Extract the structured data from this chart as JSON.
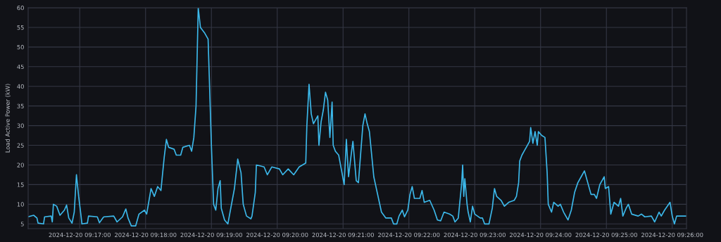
{
  "chart_data": {
    "type": "line",
    "ylabel": "Load Active Power (kW)",
    "grid": true,
    "marker": "none",
    "line_style": "solid",
    "xlim": [
      "2024-12-20T09:16:13",
      "2024-12-20T09:26:13"
    ],
    "ylim": [
      3.8,
      60
    ],
    "yticks": [
      5,
      10,
      15,
      20,
      25,
      30,
      35,
      40,
      45,
      50,
      55,
      60
    ],
    "xticks": [
      {
        "value": "2024-12-20T09:17",
        "label": "2024-12-20 09:17:00"
      },
      {
        "value": "2024-12-20T09:18",
        "label": "2024-12-20 09:18:00"
      },
      {
        "value": "2024-12-20T09:19",
        "label": "2024-12-20 09:19:00"
      },
      {
        "value": "2024-12-20T09:20",
        "label": "2024-12-20 09:20:00"
      },
      {
        "value": "2024-12-20T09:21",
        "label": "2024-12-20 09:21:00"
      },
      {
        "value": "2024-12-20T09:22",
        "label": "2024-12-20 09:22:00"
      },
      {
        "value": "2024-12-20T09:23",
        "label": "2024-12-20 09:23:00"
      },
      {
        "value": "2024-12-20T09:24",
        "label": "2024-12-20 09:24:00"
      },
      {
        "value": "2024-12-20T09:25",
        "label": "2024-12-20 09:25:00"
      },
      {
        "value": "2024-12-20T09:26",
        "label": "2024-12-20 09:26:00"
      }
    ],
    "series": [
      {
        "color": "#3cb8ea",
        "x": [
          "2024-12-20T09:16:13",
          "2024-12-20T09:16:18",
          "2024-12-20T09:16:21",
          "2024-12-20T09:16:22",
          "2024-12-20T09:16:27",
          "2024-12-20T09:16:28",
          "2024-12-20T09:16:34",
          "2024-12-20T09:16:35",
          "2024-12-20T09:16:36",
          "2024-12-20T09:16:39",
          "2024-12-20T09:16:42",
          "2024-12-20T09:16:46",
          "2024-12-20T09:16:48",
          "2024-12-20T09:16:50",
          "2024-12-20T09:16:53",
          "2024-12-20T09:16:55",
          "2024-12-20T09:16:57",
          "2024-12-20T09:16:59",
          "2024-12-20T09:17:01",
          "2024-12-20T09:17:02",
          "2024-12-20T09:17:07",
          "2024-12-20T09:17:08",
          "2024-12-20T09:17:16",
          "2024-12-20T09:17:18",
          "2024-12-20T09:17:21",
          "2024-12-20T09:17:22",
          "2024-12-20T09:17:31",
          "2024-12-20T09:17:34",
          "2024-12-20T09:17:39",
          "2024-12-20T09:17:42",
          "2024-12-20T09:17:44",
          "2024-12-20T09:17:47",
          "2024-12-20T09:17:51",
          "2024-12-20T09:17:54",
          "2024-12-20T09:17:59",
          "2024-12-20T09:18:01",
          "2024-12-20T09:18:05",
          "2024-12-20T09:18:08",
          "2024-12-20T09:18:11",
          "2024-12-20T09:18:14",
          "2024-12-20T09:18:17",
          "2024-12-20T09:18:19",
          "2024-12-20T09:18:21",
          "2024-12-20T09:18:26",
          "2024-12-20T09:18:28",
          "2024-12-20T09:18:32",
          "2024-12-20T09:18:34",
          "2024-12-20T09:18:40",
          "2024-12-20T09:18:42",
          "2024-12-20T09:18:44",
          "2024-12-20T09:18:46",
          "2024-12-20T09:18:48",
          "2024-12-20T09:18:50",
          "2024-12-20T09:18:54",
          "2024-12-20T09:18:57",
          "2024-12-20T09:18:58",
          "2024-12-20T09:19:00",
          "2024-12-20T09:19:02",
          "2024-12-20T09:19:04",
          "2024-12-20T09:19:06",
          "2024-12-20T09:19:08",
          "2024-12-20T09:19:09",
          "2024-12-20T09:19:12",
          "2024-12-20T09:19:15",
          "2024-12-20T09:19:21",
          "2024-12-20T09:19:24",
          "2024-12-20T09:19:27",
          "2024-12-20T09:19:29",
          "2024-12-20T09:19:32",
          "2024-12-20T09:19:36",
          "2024-12-20T09:19:37",
          "2024-12-20T09:19:40",
          "2024-12-20T09:19:41",
          "2024-12-20T09:19:48",
          "2024-12-20T09:19:51",
          "2024-12-20T09:19:55",
          "2024-12-20T09:20:02",
          "2024-12-20T09:20:05",
          "2024-12-20T09:20:10",
          "2024-12-20T09:20:15",
          "2024-12-20T09:20:20",
          "2024-12-20T09:20:26",
          "2024-12-20T09:20:27",
          "2024-12-20T09:20:29",
          "2024-12-20T09:20:31",
          "2024-12-20T09:20:33",
          "2024-12-20T09:20:37",
          "2024-12-20T09:20:38",
          "2024-12-20T09:20:40",
          "2024-12-20T09:20:42",
          "2024-12-20T09:20:44",
          "2024-12-20T09:20:46",
          "2024-12-20T09:20:48",
          "2024-12-20T09:20:50",
          "2024-12-20T09:20:51",
          "2024-12-20T09:20:53",
          "2024-12-20T09:20:56",
          "2024-12-20T09:20:59",
          "2024-12-20T09:21:01",
          "2024-12-20T09:21:03",
          "2024-12-20T09:21:05",
          "2024-12-20T09:21:08",
          "2024-12-20T09:21:09",
          "2024-12-20T09:21:12",
          "2024-12-20T09:21:14",
          "2024-12-20T09:21:18",
          "2024-12-20T09:21:20",
          "2024-12-20T09:21:22",
          "2024-12-20T09:21:24",
          "2024-12-20T09:21:28",
          "2024-12-20T09:21:35",
          "2024-12-20T09:21:39",
          "2024-12-20T09:21:44",
          "2024-12-20T09:21:46",
          "2024-12-20T09:21:49",
          "2024-12-20T09:21:51",
          "2024-12-20T09:21:54",
          "2024-12-20T09:21:56",
          "2024-12-20T09:21:59",
          "2024-12-20T09:22:01",
          "2024-12-20T09:22:03",
          "2024-12-20T09:22:05",
          "2024-12-20T09:22:10",
          "2024-12-20T09:22:12",
          "2024-12-20T09:22:14",
          "2024-12-20T09:22:19",
          "2024-12-20T09:22:23",
          "2024-12-20T09:22:26",
          "2024-12-20T09:22:29",
          "2024-12-20T09:22:32",
          "2024-12-20T09:22:37",
          "2024-12-20T09:22:40",
          "2024-12-20T09:22:42",
          "2024-12-20T09:22:45",
          "2024-12-20T09:22:48",
          "2024-12-20T09:22:49",
          "2024-12-20T09:22:50",
          "2024-12-20T09:22:51",
          "2024-12-20T09:22:53",
          "2024-12-20T09:22:54",
          "2024-12-20T09:22:56",
          "2024-12-20T09:22:58",
          "2024-12-20T09:23:00",
          "2024-12-20T09:23:05",
          "2024-12-20T09:23:07",
          "2024-12-20T09:23:09",
          "2024-12-20T09:23:13",
          "2024-12-20T09:23:16",
          "2024-12-20T09:23:18",
          "2024-12-20T09:23:20",
          "2024-12-20T09:23:24",
          "2024-12-20T09:23:27",
          "2024-12-20T09:23:31",
          "2024-12-20T09:23:36",
          "2024-12-20T09:23:38",
          "2024-12-20T09:23:40",
          "2024-12-20T09:23:41",
          "2024-12-20T09:23:43",
          "2024-12-20T09:23:45",
          "2024-12-20T09:23:47",
          "2024-12-20T09:23:50",
          "2024-12-20T09:23:51",
          "2024-12-20T09:23:53",
          "2024-12-20T09:23:55",
          "2024-12-20T09:23:57",
          "2024-12-20T09:23:58",
          "2024-12-20T09:24:01",
          "2024-12-20T09:24:04",
          "2024-12-20T09:24:06",
          "2024-12-20T09:24:07",
          "2024-12-20T09:24:10",
          "2024-12-20T09:24:12",
          "2024-12-20T09:24:16",
          "2024-12-20T09:24:18",
          "2024-12-20T09:24:21",
          "2024-12-20T09:24:25",
          "2024-12-20T09:24:28",
          "2024-12-20T09:24:31",
          "2024-12-20T09:24:34",
          "2024-12-20T09:24:37",
          "2024-12-20T09:24:40",
          "2024-12-20T09:24:43",
          "2024-12-20T09:24:46",
          "2024-12-20T09:24:49",
          "2024-12-20T09:24:51",
          "2024-12-20T09:24:54",
          "2024-12-20T09:24:58",
          "2024-12-20T09:24:59",
          "2024-12-20T09:25:02",
          "2024-12-20T09:25:03",
          "2024-12-20T09:25:04",
          "2024-12-20T09:25:07",
          "2024-12-20T09:25:11",
          "2024-12-20T09:25:13",
          "2024-12-20T09:25:15",
          "2024-12-20T09:25:18",
          "2024-12-20T09:25:20",
          "2024-12-20T09:25:23",
          "2024-12-20T09:25:29",
          "2024-12-20T09:25:32",
          "2024-12-20T09:25:35",
          "2024-12-20T09:25:41",
          "2024-12-20T09:25:44",
          "2024-12-20T09:25:48",
          "2024-12-20T09:25:50",
          "2024-12-20T09:25:53",
          "2024-12-20T09:25:58",
          "2024-12-20T09:26:00",
          "2024-12-20T09:26:02",
          "2024-12-20T09:26:04",
          "2024-12-20T09:26:13"
        ],
        "values": [
          6.8,
          7.2,
          6.5,
          5.2,
          5.0,
          6.8,
          7.0,
          5.5,
          10.0,
          9.5,
          7.2,
          8.5,
          9.8,
          6.5,
          5.2,
          8.0,
          17.5,
          12.0,
          7.5,
          5.0,
          5.2,
          7.0,
          6.8,
          5.3,
          6.5,
          6.8,
          7.0,
          5.5,
          6.8,
          8.8,
          6.5,
          4.5,
          4.5,
          7.5,
          8.5,
          7.5,
          14.0,
          12.0,
          14.5,
          13.5,
          22.0,
          26.5,
          24.5,
          24.0,
          22.5,
          22.5,
          24.5,
          25.0,
          23.5,
          27.0,
          35.0,
          60.0,
          55.0,
          53.5,
          52.0,
          43.0,
          25.0,
          10.0,
          8.5,
          14.0,
          16.0,
          9.0,
          6.0,
          5.0,
          14.0,
          21.5,
          18.0,
          10.0,
          7.0,
          6.3,
          7.0,
          13.0,
          20.0,
          19.5,
          17.5,
          19.5,
          19.0,
          17.5,
          19.0,
          17.5,
          19.5,
          20.5,
          30.0,
          40.5,
          33.0,
          30.5,
          32.5,
          25.0,
          31.0,
          34.0,
          38.5,
          36.5,
          27.0,
          36.0,
          25.0,
          23.5,
          22.5,
          18.0,
          15.0,
          26.5,
          17.0,
          24.0,
          26.0,
          16.0,
          15.5,
          30.0,
          33.0,
          30.5,
          28.5,
          17.0,
          8.0,
          6.5,
          6.5,
          5.0,
          5.0,
          7.0,
          8.5,
          6.8,
          8.5,
          12.5,
          14.5,
          11.5,
          11.5,
          13.5,
          10.5,
          11.0,
          8.5,
          6.0,
          5.8,
          8.0,
          7.5,
          7.0,
          5.5,
          6.5,
          15.0,
          20.0,
          12.0,
          16.5,
          10.0,
          8.0,
          5.5,
          9.5,
          7.5,
          6.5,
          6.5,
          5.0,
          5.0,
          9.0,
          14.0,
          12.0,
          11.0,
          9.5,
          10.5,
          11.0,
          12.0,
          15.5,
          21.0,
          22.5,
          23.5,
          24.5,
          26.0,
          29.5,
          25.5,
          28.5,
          25.0,
          28.5,
          27.5,
          27.0,
          18.0,
          10.0,
          8.0,
          10.5,
          9.5,
          10.0,
          8.0,
          6.0,
          8.5,
          13.0,
          15.5,
          17.0,
          18.5,
          15.5,
          12.5,
          12.5,
          11.5,
          15.0,
          17.0,
          14.0,
          14.5,
          11.0,
          7.5,
          10.5,
          9.5,
          11.5,
          7.0,
          9.0,
          10.0,
          7.5,
          7.0,
          7.5,
          6.8,
          7.0,
          5.5,
          8.0,
          7.0,
          8.5,
          10.5,
          7.0,
          5.0,
          7.0,
          7.0
        ]
      }
    ]
  }
}
